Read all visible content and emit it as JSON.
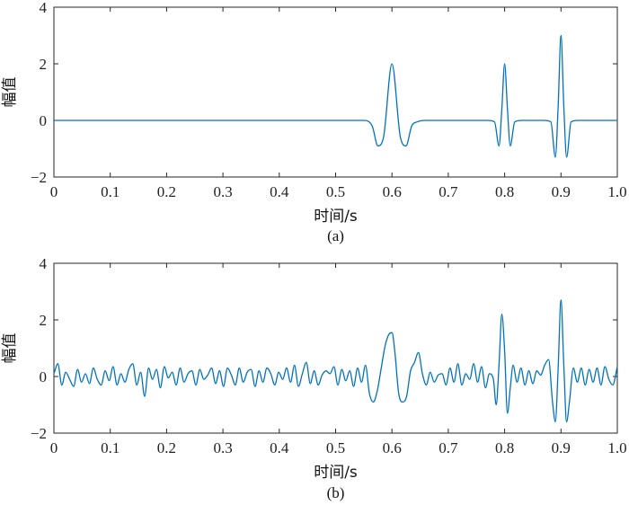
{
  "chart_data": [
    {
      "type": "line",
      "panel_label": "(a)",
      "xlabel": "时间/s",
      "ylabel": "幅值",
      "xlim": [
        0,
        1.0
      ],
      "ylim": [
        -2,
        4
      ],
      "x_ticks": [
        "0",
        "0.1",
        "0.2",
        "0.3",
        "0.4",
        "0.5",
        "0.6",
        "0.7",
        "0.8",
        "0.9",
        "1.0"
      ],
      "y_ticks": [
        "−2",
        "0",
        "2",
        "4"
      ],
      "grid": false,
      "color": "#0072BD",
      "series": [
        {
          "x": [
            0,
            0.5,
            0.55,
            0.565,
            0.575,
            0.585,
            0.6,
            0.615,
            0.625,
            0.635,
            0.645,
            0.66,
            0.7,
            0.77,
            0.782,
            0.79,
            0.795,
            0.8,
            0.805,
            0.81,
            0.818,
            0.83,
            0.87,
            0.882,
            0.89,
            0.895,
            0.9,
            0.905,
            0.91,
            0.918,
            0.93,
            1.0
          ],
          "y": [
            0,
            0,
            0,
            -0.2,
            -0.9,
            -0.6,
            2.0,
            -0.6,
            -0.9,
            -0.2,
            -0.05,
            0,
            0,
            0,
            -0.05,
            -0.9,
            0.4,
            2.0,
            0.4,
            -0.9,
            -0.05,
            0,
            0,
            -0.05,
            -1.3,
            0.5,
            3.0,
            0.5,
            -1.3,
            -0.05,
            0,
            0
          ]
        }
      ]
    },
    {
      "type": "line",
      "panel_label": "(b)",
      "xlabel": "时间/s",
      "ylabel": "幅值",
      "xlim": [
        0,
        1.0
      ],
      "ylim": [
        -2,
        4
      ],
      "x_ticks": [
        "0",
        "0.1",
        "0.2",
        "0.3",
        "0.4",
        "0.5",
        "0.6",
        "0.7",
        "0.8",
        "0.9",
        "1.0"
      ],
      "y_ticks": [
        "−2",
        "0",
        "2",
        "4"
      ],
      "grid": false,
      "color": "#0072BD",
      "series": [
        {
          "x": [
            0,
            0.007,
            0.014,
            0.021,
            0.028,
            0.035,
            0.042,
            0.049,
            0.056,
            0.063,
            0.07,
            0.077,
            0.084,
            0.091,
            0.098,
            0.105,
            0.112,
            0.119,
            0.126,
            0.133,
            0.14,
            0.147,
            0.154,
            0.161,
            0.168,
            0.175,
            0.182,
            0.189,
            0.196,
            0.203,
            0.21,
            0.217,
            0.224,
            0.231,
            0.238,
            0.245,
            0.252,
            0.259,
            0.266,
            0.273,
            0.28,
            0.287,
            0.294,
            0.301,
            0.308,
            0.315,
            0.322,
            0.329,
            0.336,
            0.343,
            0.35,
            0.357,
            0.364,
            0.371,
            0.378,
            0.385,
            0.392,
            0.399,
            0.406,
            0.413,
            0.42,
            0.427,
            0.434,
            0.441,
            0.448,
            0.455,
            0.462,
            0.469,
            0.476,
            0.483,
            0.49,
            0.497,
            0.504,
            0.511,
            0.518,
            0.525,
            0.532,
            0.539,
            0.546,
            0.553,
            0.56,
            0.567,
            0.574,
            0.581,
            0.588,
            0.595,
            0.6,
            0.605,
            0.612,
            0.619,
            0.626,
            0.633,
            0.64,
            0.647,
            0.654,
            0.661,
            0.668,
            0.675,
            0.682,
            0.689,
            0.696,
            0.703,
            0.71,
            0.717,
            0.724,
            0.731,
            0.738,
            0.745,
            0.752,
            0.759,
            0.766,
            0.773,
            0.78,
            0.785,
            0.79,
            0.795,
            0.8,
            0.805,
            0.81,
            0.815,
            0.822,
            0.829,
            0.836,
            0.843,
            0.85,
            0.857,
            0.864,
            0.871,
            0.878,
            0.885,
            0.89,
            0.895,
            0.9,
            0.905,
            0.91,
            0.915,
            0.922,
            0.929,
            0.936,
            0.943,
            0.95,
            0.957,
            0.964,
            0.971,
            0.978,
            0.985,
            0.992,
            1.0
          ],
          "y": [
            0.1,
            0.45,
            -0.3,
            0.15,
            -0.1,
            -0.35,
            0.25,
            -0.2,
            0.1,
            -0.25,
            0.3,
            -0.1,
            -0.3,
            0.2,
            -0.15,
            0.35,
            -0.3,
            0.1,
            -0.2,
            0.25,
            0.45,
            -0.3,
            0.15,
            -0.7,
            0.3,
            -0.1,
            0.25,
            -0.4,
            0.35,
            -0.05,
            0.15,
            -0.3,
            0.3,
            -0.2,
            0.1,
            0.2,
            -0.3,
            0.25,
            -0.1,
            0.05,
            0.3,
            -0.25,
            0.2,
            -0.35,
            0.3,
            0.05,
            -0.3,
            0.3,
            -0.2,
            0.15,
            0.25,
            -0.35,
            0.2,
            -0.2,
            0.3,
            0.1,
            -0.3,
            0.15,
            -0.1,
            0.3,
            -0.2,
            0.4,
            -0.35,
            0.1,
            0.5,
            -0.25,
            0.2,
            -0.3,
            0.05,
            0.2,
            0.1,
            0.35,
            -0.3,
            0.25,
            -0.15,
            0.2,
            -0.35,
            0.3,
            -0.2,
            0.4,
            -0.6,
            -0.9,
            -0.5,
            0.3,
            1.1,
            1.5,
            1.55,
            0.9,
            -0.6,
            -0.9,
            -0.7,
            0.2,
            0.5,
            0.85,
            0.1,
            -0.3,
            0.15,
            -0.2,
            0.05,
            0.1,
            -0.3,
            0.3,
            -0.2,
            0.45,
            -0.3,
            0.1,
            -0.1,
            0.45,
            -0.2,
            0.35,
            -0.4,
            0.1,
            -0.1,
            -1.0,
            0.4,
            2.2,
            0.9,
            -1.3,
            -0.4,
            0.4,
            -0.2,
            0.3,
            -0.3,
            0.2,
            -0.25,
            0.2,
            0.05,
            0.4,
            0.6,
            -0.9,
            -1.6,
            0.3,
            2.7,
            0.4,
            -1.6,
            -0.9,
            0.3,
            -0.2,
            0.3,
            -0.3,
            0.25,
            -0.2,
            0.3,
            -0.3,
            0.35,
            -0.1,
            -0.3,
            0.35
          ]
        }
      ]
    }
  ]
}
